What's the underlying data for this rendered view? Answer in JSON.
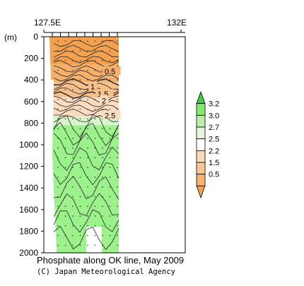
{
  "chart_data": {
    "type": "heatmap",
    "title": "Phosphate along OK line, May 2009",
    "credit": "(C) Japan Meteorological Agency",
    "x_axis": {
      "tick_labels": [
        "127.5E",
        "132E"
      ],
      "range_label_left": "127.5E",
      "range_label_right": "132E"
    },
    "y_axis": {
      "unit_label": "(m)",
      "tick_labels": [
        "0",
        "200",
        "400",
        "600",
        "800",
        "1000",
        "1200",
        "1400",
        "1600",
        "1800",
        "2000"
      ],
      "ylim": [
        0,
        2000
      ],
      "inverted": true
    },
    "contour_labels": [
      "0.5",
      "1",
      "1.5",
      "2",
      "2.5"
    ],
    "colorbar": {
      "labels": [
        "3.2",
        "3.0",
        "2.7",
        "2.5",
        "2.2",
        "1.5",
        "0.5"
      ],
      "levels": [
        0.5,
        1.0,
        1.5,
        2.0,
        2.2,
        2.5,
        2.7,
        3.0,
        3.2
      ],
      "colors": [
        "#f0a050",
        "#f5b270",
        "#f8c594",
        "#fad8b8",
        "#ffffff",
        "#e6f7e0",
        "#b9f0a8",
        "#86e870",
        "#3fcf3f"
      ]
    },
    "colors": {
      "shallow_orange": "#f3a14e",
      "mid_orange": "#f7c08a",
      "light_peach": "#fbdcc0",
      "pale_green": "#d8f6cc",
      "green": "#9cf28a"
    }
  }
}
